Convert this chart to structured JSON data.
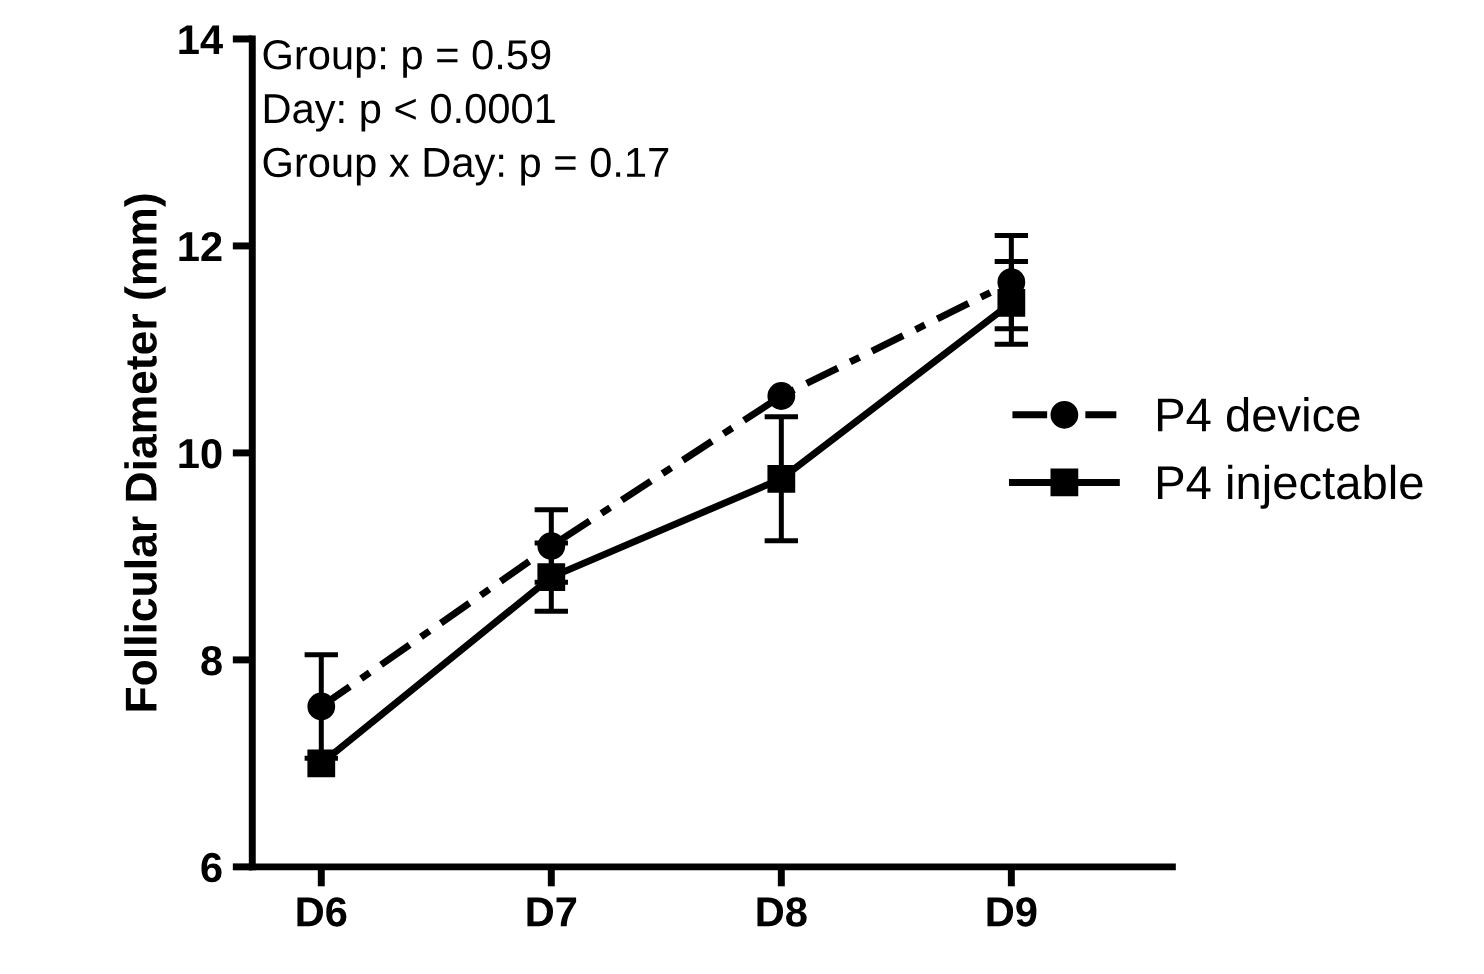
{
  "chart_data": {
    "type": "line",
    "ylabel": "Follicular Diameter (mm)",
    "categories": [
      "D6",
      "D7",
      "D8",
      "D9"
    ],
    "series": [
      {
        "name": "P4 device",
        "color": "#000000",
        "marker": "circle",
        "line_style": "dashed",
        "values": [
          7.55,
          9.1,
          10.55,
          11.65
        ],
        "errors": [
          0.5,
          0.35,
          null,
          0.45
        ]
      },
      {
        "name": "P4 injectable",
        "color": "#000000",
        "marker": "square",
        "line_style": "solid",
        "values": [
          7.0,
          8.8,
          9.75,
          11.45
        ],
        "errors": [
          null,
          0.33,
          0.6,
          0.4
        ]
      }
    ],
    "ylim": [
      6,
      14
    ],
    "yticks": [
      6,
      8,
      10,
      12,
      14
    ],
    "grid": false,
    "legend": "right",
    "annotations": [
      "Group: p = 0.59",
      "Day: p < 0.0001",
      "Group x Day: p = 0.17"
    ]
  }
}
